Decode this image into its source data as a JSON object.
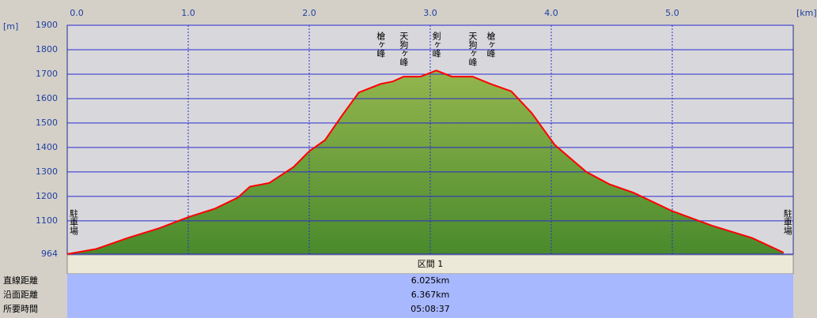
{
  "chart_data": {
    "type": "area",
    "x_label": "[km]",
    "y_label": "[m]",
    "x": [
      0.0,
      0.24,
      0.5,
      0.76,
      1.0,
      1.22,
      1.41,
      1.51,
      1.67,
      1.87,
      2.0,
      2.13,
      2.27,
      2.41,
      2.59,
      2.69,
      2.78,
      2.92,
      3.05,
      3.18,
      3.35,
      3.5,
      3.67,
      3.84,
      4.03,
      4.29,
      4.48,
      4.68,
      5.0,
      5.33,
      5.66,
      5.92
    ],
    "values": [
      964,
      985,
      1030,
      1070,
      1115,
      1150,
      1195,
      1240,
      1255,
      1320,
      1385,
      1430,
      1530,
      1625,
      1660,
      1670,
      1690,
      1690,
      1715,
      1690,
      1690,
      1660,
      1630,
      1540,
      1410,
      1300,
      1250,
      1215,
      1140,
      1080,
      1030,
      970
    ],
    "color": "#ff0000",
    "xlim": [
      0,
      6
    ],
    "xticks": [
      {
        "value": 0,
        "label": "0.0"
      },
      {
        "value": 1,
        "label": "1.0"
      },
      {
        "value": 2,
        "label": "2.0"
      },
      {
        "value": 3,
        "label": "3.0"
      },
      {
        "value": 4,
        "label": "4.0"
      },
      {
        "value": 5,
        "label": "5.0"
      }
    ],
    "ylim": [
      964,
      1900
    ],
    "yticks": [
      964,
      1100,
      1200,
      1300,
      1400,
      1500,
      1600,
      1700,
      1800,
      1900
    ],
    "grid": true,
    "annotations": [
      {
        "text": "駐車場",
        "x": 0.0
      },
      {
        "text": "槍ヶ峰",
        "x": 2.59
      },
      {
        "text": "天狗ヶ峰",
        "x": 2.78
      },
      {
        "text": "剣ヶ峰",
        "x": 3.05
      },
      {
        "text": "天狗ヶ峰",
        "x": 3.35
      },
      {
        "text": "槍ヶ峰",
        "x": 3.5
      },
      {
        "text": "駐車場",
        "x": 5.92
      }
    ]
  },
  "table": {
    "header": "区間 1",
    "rows": [
      [
        "直線距離",
        "6.025km"
      ],
      [
        "沿面距離",
        "6.367km"
      ],
      [
        "所要時間",
        "05:08:37"
      ]
    ]
  }
}
